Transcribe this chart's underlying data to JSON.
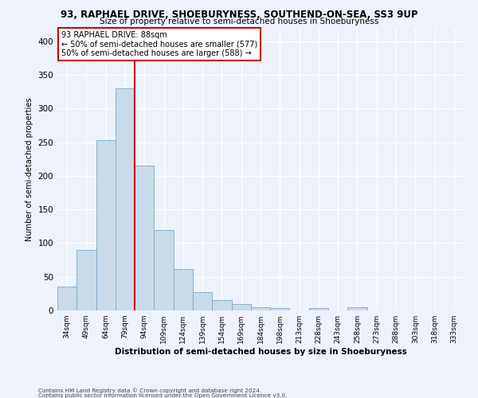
{
  "title": "93, RAPHAEL DRIVE, SHOEBURYNESS, SOUTHEND-ON-SEA, SS3 9UP",
  "subtitle": "Size of property relative to semi-detached houses in Shoeburyness",
  "xlabel": "Distribution of semi-detached houses by size in Shoeburyness",
  "ylabel": "Number of semi-detached properties",
  "categories": [
    "34sqm",
    "49sqm",
    "64sqm",
    "79sqm",
    "94sqm",
    "109sqm",
    "124sqm",
    "139sqm",
    "154sqm",
    "169sqm",
    "184sqm",
    "198sqm",
    "213sqm",
    "228sqm",
    "243sqm",
    "258sqm",
    "273sqm",
    "288sqm",
    "303sqm",
    "318sqm",
    "333sqm"
  ],
  "values": [
    35,
    90,
    253,
    330,
    215,
    120,
    62,
    27,
    15,
    10,
    5,
    4,
    0,
    3,
    0,
    5,
    0,
    0,
    0,
    0,
    0
  ],
  "bar_color": "#c9daea",
  "bar_edge_color": "#7aaac8",
  "background_color": "#eef2fb",
  "grid_color": "#ffffff",
  "red_line_x": 3.5,
  "property_label": "93 RAPHAEL DRIVE: 88sqm",
  "smaller_text": "← 50% of semi-detached houses are smaller (577)",
  "larger_text": "50% of semi-detached houses are larger (588) →",
  "annotation_box_color": "#ffffff",
  "annotation_border_color": "#cc0000",
  "ylim": [
    0,
    420
  ],
  "yticks": [
    0,
    50,
    100,
    150,
    200,
    250,
    300,
    350,
    400
  ],
  "footer1": "Contains HM Land Registry data © Crown copyright and database right 2024.",
  "footer2": "Contains public sector information licensed under the Open Government Licence v3.0."
}
